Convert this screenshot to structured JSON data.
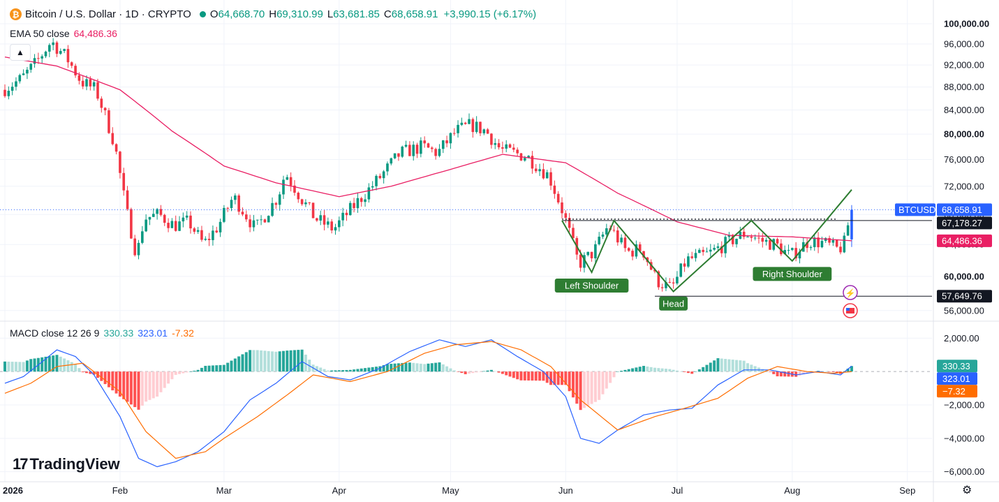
{
  "header": {
    "symbol_title": "Bitcoin / U.S. Dollar · 1D · CRYPTO",
    "coin_glyph": "₿",
    "open_label": "O",
    "open": "64,668.70",
    "high_label": "H",
    "high": "69,310.99",
    "low_label": "L",
    "low": "63,681.85",
    "close_label": "C",
    "close": "68,658.91",
    "change": "+3,990.15 (+6.17%)"
  },
  "ema": {
    "label": "EMA 50 close",
    "value": "64,486.36"
  },
  "macd_legend": {
    "label": "MACD close 12 26 9",
    "hist": "330.33",
    "macd": "323.01",
    "signal": "-7.32"
  },
  "branding": {
    "text": "TradingView",
    "logo_glyph": "17"
  },
  "colors": {
    "up": "#089981",
    "down": "#f23645",
    "ema": "#e91e63",
    "macd": "#2962ff",
    "signal": "#ff6d00",
    "pattern": "#2e7d32",
    "hist_up_strong": "#26a69a",
    "hist_up_weak": "#b2dfdb",
    "hist_down_strong": "#ff5252",
    "hist_down_weak": "#ffcdd2",
    "axis_text": "#131722",
    "grid": "#f0f3fa"
  },
  "chart_data": [
    {
      "type": "candlestick",
      "x_axis": {
        "ticks": [
          "2026",
          "Feb",
          "Mar",
          "Apr",
          "May",
          "Jun",
          "Jul",
          "Aug",
          "Sep"
        ],
        "tick_dates": [
          "2026-01-01",
          "2026-02-01",
          "2026-03-01",
          "2026-04-01",
          "2026-05-01",
          "2026-06-01",
          "2026-07-01",
          "2026-08-01",
          "2026-09-01"
        ]
      },
      "y_axis": {
        "scale": "log",
        "range": [
          55200,
          102000
        ],
        "ticks": [
          "56,000.00",
          "60,000.00",
          "64,000.00",
          "68,000.00",
          "72,000.00",
          "76,000.00",
          "80,000.00",
          "84,000.00",
          "88,000.00",
          "92,000.00",
          "96,000.00",
          "100,000.00"
        ],
        "tick_values": [
          56000,
          60000,
          64000,
          68000,
          72000,
          76000,
          80000,
          84000,
          88000,
          92000,
          96000,
          100000
        ],
        "bold_ticks": [
          "60,000.00",
          "80,000.00",
          "100,000.00"
        ]
      },
      "anchors": [
        [
          "2026-01-01",
          87500
        ],
        [
          "2026-01-06",
          89500
        ],
        [
          "2026-01-10",
          92500
        ],
        [
          "2026-01-14",
          96500
        ],
        [
          "2026-01-18",
          93500
        ],
        [
          "2026-01-22",
          89000
        ],
        [
          "2026-01-26",
          87500
        ],
        [
          "2026-01-31",
          78500
        ],
        [
          "2026-02-03",
          69000
        ],
        [
          "2026-02-06",
          62500
        ],
        [
          "2026-02-08",
          67500
        ],
        [
          "2026-02-12",
          68000
        ],
        [
          "2026-02-16",
          66500
        ],
        [
          "2026-02-20",
          67000
        ],
        [
          "2026-02-24",
          64000
        ],
        [
          "2026-02-28",
          66500
        ],
        [
          "2026-03-04",
          70500
        ],
        [
          "2026-03-10",
          66000
        ],
        [
          "2026-03-16",
          70500
        ],
        [
          "2026-03-18",
          74000
        ],
        [
          "2026-03-22",
          70500
        ],
        [
          "2026-03-26",
          67500
        ],
        [
          "2026-03-31",
          66000
        ],
        [
          "2026-04-06",
          69500
        ],
        [
          "2026-04-12",
          73000
        ],
        [
          "2026-04-18",
          77000
        ],
        [
          "2026-04-24",
          78000
        ],
        [
          "2026-04-28",
          77000
        ],
        [
          "2026-05-03",
          80500
        ],
        [
          "2026-05-07",
          81500
        ],
        [
          "2026-05-11",
          80500
        ],
        [
          "2026-05-15",
          77500
        ],
        [
          "2026-05-22",
          76500
        ],
        [
          "2026-05-28",
          73500
        ],
        [
          "2026-06-01",
          68000
        ],
        [
          "2026-06-05",
          61500
        ],
        [
          "2026-06-09",
          63000
        ],
        [
          "2026-06-13",
          66500
        ],
        [
          "2026-06-18",
          63000
        ],
        [
          "2026-06-22",
          63500
        ],
        [
          "2026-06-26",
          59500
        ],
        [
          "2026-06-30",
          58500
        ],
        [
          "2026-07-04",
          62000
        ],
        [
          "2026-07-10",
          62800
        ],
        [
          "2026-07-16",
          64500
        ],
        [
          "2026-07-20",
          65500
        ],
        [
          "2026-07-24",
          64500
        ],
        [
          "2026-07-28",
          64000
        ],
        [
          "2026-08-01",
          62500
        ],
        [
          "2026-08-06",
          64500
        ],
        [
          "2026-08-10",
          64200
        ],
        [
          "2026-08-14",
          63300
        ],
        [
          "2026-08-16",
          64500
        ],
        [
          "2026-08-17",
          68658.91
        ]
      ],
      "last_candle": {
        "date": "2026-08-17",
        "open": 64668.7,
        "high": 69310.99,
        "low": 63681.85,
        "close": 68658.91
      },
      "ema50_anchors": [
        [
          "2026-01-01",
          93500
        ],
        [
          "2026-01-15",
          91800
        ],
        [
          "2026-02-01",
          87500
        ],
        [
          "2026-02-15",
          80500
        ],
        [
          "2026-03-01",
          75000
        ],
        [
          "2026-03-15",
          72500
        ],
        [
          "2026-04-01",
          70500
        ],
        [
          "2026-04-15",
          72000
        ],
        [
          "2026-05-01",
          74500
        ],
        [
          "2026-05-15",
          76800
        ],
        [
          "2026-06-01",
          75500
        ],
        [
          "2026-06-15",
          71000
        ],
        [
          "2026-07-01",
          67000
        ],
        [
          "2026-07-15",
          65200
        ],
        [
          "2026-08-01",
          65000
        ],
        [
          "2026-08-17",
          64486.36
        ]
      ],
      "head_and_shoulders": [
        [
          "2026-05-31",
          67178.27
        ],
        [
          "2026-06-08",
          60500
        ],
        [
          "2026-06-14",
          67178.27
        ],
        [
          "2026-06-30",
          58200
        ],
        [
          "2026-07-21",
          67178.27
        ],
        [
          "2026-08-01",
          61900
        ],
        [
          "2026-08-17",
          71500
        ]
      ],
      "pattern_labels": [
        {
          "text": "Left Shoulder",
          "date": "2026-06-08",
          "value": 58900
        },
        {
          "text": "Head",
          "date": "2026-06-30",
          "value": 56800
        },
        {
          "text": "Right Shoulder",
          "date": "2026-08-01",
          "value": 60300
        }
      ],
      "horizontal_lines": [
        {
          "value": 67178.27,
          "from": "2026-05-31",
          "style": "solid",
          "label": "67,178.27"
        },
        {
          "value": 57649.76,
          "from": "2026-06-25",
          "style": "solid",
          "label": "57,649.76"
        },
        {
          "value": 68658.91,
          "from": "2026-01-01",
          "style": "dotted"
        }
      ],
      "price_tags": [
        {
          "value": 68658.91,
          "symbol": "BTCUSD",
          "text": "68,658.91",
          "color": "#2962ff"
        },
        {
          "value": 67178.27,
          "text": "67,178.27",
          "color": "#131722"
        },
        {
          "value": 64486.36,
          "text": "64,486.36",
          "color": "#e91e63"
        },
        {
          "value": 57649.76,
          "text": "57,649.76",
          "color": "#131722"
        }
      ]
    },
    {
      "type": "macd",
      "y_axis": {
        "range": [
          -6600,
          2600
        ],
        "ticks": [
          "2,000.00",
          "−2,000.00",
          "−4,000.00",
          "−6,000.00"
        ],
        "tick_values": [
          2000,
          -2000,
          -4000,
          -6000
        ]
      },
      "macd_anchors": [
        [
          "2026-01-01",
          -700
        ],
        [
          "2026-01-06",
          -300
        ],
        [
          "2026-01-10",
          400
        ],
        [
          "2026-01-15",
          1300
        ],
        [
          "2026-01-20",
          900
        ],
        [
          "2026-01-25",
          -200
        ],
        [
          "2026-02-01",
          -2700
        ],
        [
          "2026-02-06",
          -5200
        ],
        [
          "2026-02-11",
          -5700
        ],
        [
          "2026-02-16",
          -5400
        ],
        [
          "2026-02-22",
          -4800
        ],
        [
          "2026-03-01",
          -3600
        ],
        [
          "2026-03-08",
          -1700
        ],
        [
          "2026-03-15",
          -700
        ],
        [
          "2026-03-22",
          600
        ],
        [
          "2026-03-29",
          -300
        ],
        [
          "2026-04-04",
          -500
        ],
        [
          "2026-04-12",
          200
        ],
        [
          "2026-04-20",
          1200
        ],
        [
          "2026-04-28",
          1900
        ],
        [
          "2026-05-05",
          1500
        ],
        [
          "2026-05-12",
          1900
        ],
        [
          "2026-05-19",
          900
        ],
        [
          "2026-05-26",
          0
        ],
        [
          "2026-06-01",
          -1500
        ],
        [
          "2026-06-05",
          -4000
        ],
        [
          "2026-06-10",
          -4300
        ],
        [
          "2026-06-15",
          -3500
        ],
        [
          "2026-06-22",
          -2600
        ],
        [
          "2026-06-29",
          -2300
        ],
        [
          "2026-07-05",
          -2200
        ],
        [
          "2026-07-12",
          -800
        ],
        [
          "2026-07-19",
          100
        ],
        [
          "2026-07-26",
          100
        ],
        [
          "2026-08-02",
          -200
        ],
        [
          "2026-08-08",
          0
        ],
        [
          "2026-08-14",
          -200
        ],
        [
          "2026-08-17",
          323.01
        ]
      ],
      "signal_anchors": [
        [
          "2026-01-01",
          -1300
        ],
        [
          "2026-01-08",
          -700
        ],
        [
          "2026-01-15",
          300
        ],
        [
          "2026-01-22",
          500
        ],
        [
          "2026-02-01",
          -1200
        ],
        [
          "2026-02-08",
          -3600
        ],
        [
          "2026-02-16",
          -5200
        ],
        [
          "2026-02-24",
          -4800
        ],
        [
          "2026-03-01",
          -4000
        ],
        [
          "2026-03-10",
          -2700
        ],
        [
          "2026-03-18",
          -1400
        ],
        [
          "2026-03-25",
          -200
        ],
        [
          "2026-04-04",
          -600
        ],
        [
          "2026-04-14",
          0
        ],
        [
          "2026-04-24",
          1100
        ],
        [
          "2026-05-02",
          1600
        ],
        [
          "2026-05-12",
          1800
        ],
        [
          "2026-05-20",
          1300
        ],
        [
          "2026-05-28",
          300
        ],
        [
          "2026-06-05",
          -1700
        ],
        [
          "2026-06-15",
          -3500
        ],
        [
          "2026-06-25",
          -2700
        ],
        [
          "2026-07-03",
          -2200
        ],
        [
          "2026-07-12",
          -1600
        ],
        [
          "2026-07-20",
          -400
        ],
        [
          "2026-07-28",
          300
        ],
        [
          "2026-08-05",
          0
        ],
        [
          "2026-08-12",
          -100
        ],
        [
          "2026-08-17",
          -7.32
        ]
      ],
      "price_tags": [
        {
          "value": 330.33,
          "text": "330.33",
          "color": "#26a69a"
        },
        {
          "value": 323.01,
          "text": "323.01",
          "color": "#2962ff"
        },
        {
          "value": -7.32,
          "text": "−7.32",
          "color": "#ff6d00"
        }
      ]
    }
  ]
}
